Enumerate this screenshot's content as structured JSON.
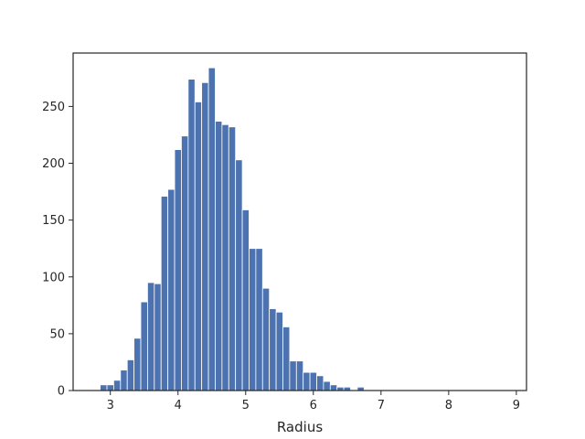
{
  "chart_data": {
    "type": "bar",
    "title": "",
    "xlabel": "Radius",
    "ylabel": "",
    "xlim": [
      2.45,
      9.15
    ],
    "ylim": [
      0,
      297
    ],
    "grid": false,
    "bar_color": "#4c72b0",
    "bin_width": 0.1,
    "bin_starts": [
      2.85,
      2.95,
      3.05,
      3.15,
      3.25,
      3.35,
      3.45,
      3.55,
      3.65,
      3.75,
      3.85,
      3.95,
      4.05,
      4.15,
      4.25,
      4.35,
      4.45,
      4.55,
      4.65,
      4.75,
      4.85,
      4.95,
      5.05,
      5.15,
      5.25,
      5.35,
      5.45,
      5.55,
      5.65,
      5.75,
      5.85,
      5.95,
      6.05,
      6.15,
      6.25,
      6.35,
      6.45,
      6.55,
      6.65,
      6.75,
      6.85,
      6.95,
      7.05,
      7.15,
      7.25,
      7.35,
      7.45,
      7.55,
      7.65,
      7.75,
      7.85,
      7.95,
      8.05,
      8.15,
      8.25,
      8.35,
      8.45,
      8.55,
      8.65,
      8.75
    ],
    "values": [
      5,
      5,
      9,
      18,
      27,
      46,
      78,
      95,
      94,
      171,
      177,
      212,
      224,
      274,
      254,
      271,
      284,
      237,
      234,
      232,
      203,
      159,
      125,
      125,
      90,
      72,
      69,
      56,
      26,
      26,
      16,
      16,
      13,
      8,
      5,
      3,
      3,
      0,
      3,
      0,
      0,
      0,
      0,
      0,
      0,
      0,
      0,
      0,
      0,
      0,
      0,
      0,
      0,
      0,
      0,
      0,
      0,
      0,
      0,
      0
    ],
    "x_ticks": [
      3,
      4,
      5,
      6,
      7,
      8,
      9
    ],
    "x_tick_labels": [
      "3",
      "4",
      "5",
      "6",
      "7",
      "8",
      "9"
    ],
    "y_ticks": [
      0,
      50,
      100,
      150,
      200,
      250
    ],
    "y_tick_labels": [
      "0",
      "50",
      "100",
      "150",
      "200",
      "250"
    ]
  }
}
